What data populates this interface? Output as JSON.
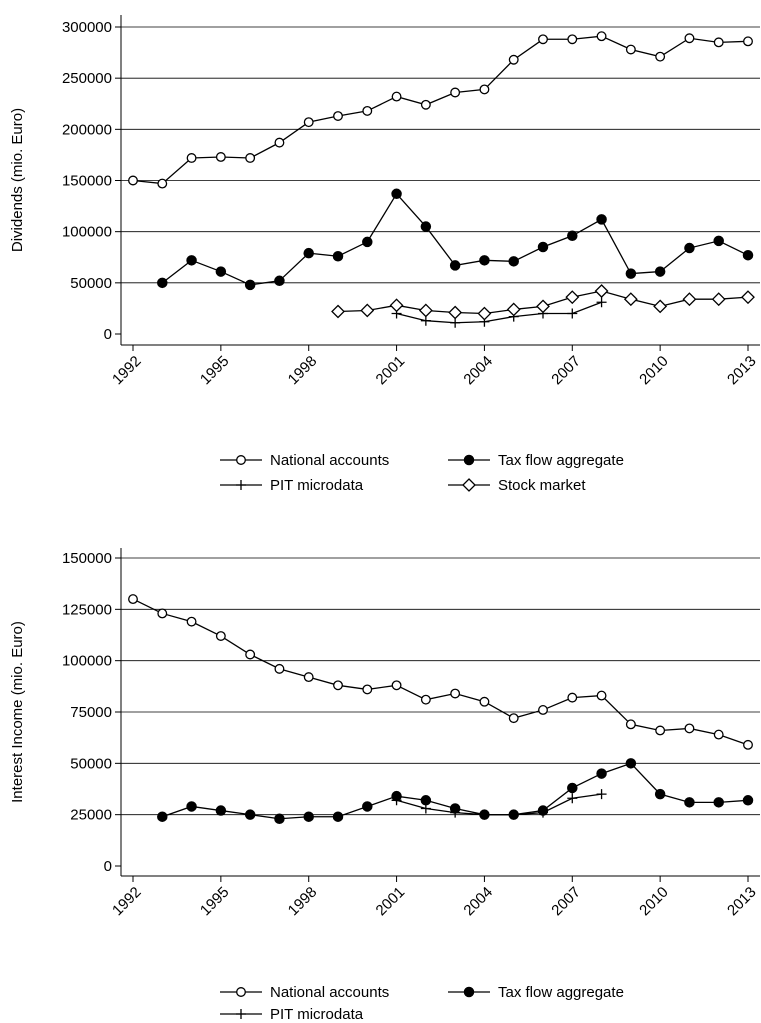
{
  "chart_data": [
    {
      "type": "line",
      "y_label": "Dividends (mio. Euro)",
      "x": [
        1992,
        1993,
        1994,
        1995,
        1996,
        1997,
        1998,
        1999,
        2000,
        2001,
        2002,
        2003,
        2004,
        2005,
        2006,
        2007,
        2008,
        2009,
        2010,
        2011,
        2012,
        2013
      ],
      "xlim": [
        1992,
        2013
      ],
      "xticks": [
        1992,
        1995,
        1998,
        2001,
        2004,
        2007,
        2010,
        2013
      ],
      "ylim": [
        0,
        300000
      ],
      "yticks": [
        0,
        50000,
        100000,
        150000,
        200000,
        250000,
        300000
      ],
      "grid": true,
      "series": [
        {
          "name": "National accounts",
          "color": "#000000",
          "marker": "open-circle",
          "values": [
            150000,
            147000,
            172000,
            173000,
            172000,
            187000,
            207000,
            213000,
            218000,
            232000,
            224000,
            236000,
            239000,
            268000,
            288000,
            288000,
            291000,
            278000,
            271000,
            289000,
            285000,
            286000
          ]
        },
        {
          "name": "Tax flow aggregate",
          "color": "#000000",
          "marker": "filled-circle",
          "values": [
            null,
            50000,
            72000,
            61000,
            48000,
            52000,
            79000,
            76000,
            90000,
            137000,
            105000,
            67000,
            72000,
            71000,
            85000,
            96000,
            112000,
            59000,
            61000,
            84000,
            91000,
            77000
          ]
        },
        {
          "name": "PIT microdata",
          "color": "#000000",
          "marker": "plus",
          "values": [
            null,
            null,
            null,
            null,
            null,
            null,
            null,
            null,
            null,
            20000,
            13000,
            11000,
            12000,
            17000,
            20000,
            20000,
            31000,
            null,
            null,
            null,
            null,
            null
          ]
        },
        {
          "name": "Stock market",
          "color": "#000000",
          "marker": "diamond",
          "values": [
            null,
            null,
            null,
            null,
            null,
            null,
            null,
            22000,
            23000,
            28000,
            23000,
            21000,
            20000,
            24000,
            27000,
            36000,
            42000,
            34000,
            27000,
            34000,
            34000,
            36000
          ]
        }
      ]
    },
    {
      "type": "line",
      "y_label": "Interest Income (mio. Euro)",
      "x": [
        1992,
        1993,
        1994,
        1995,
        1996,
        1997,
        1998,
        1999,
        2000,
        2001,
        2002,
        2003,
        2004,
        2005,
        2006,
        2007,
        2008,
        2009,
        2010,
        2011,
        2012,
        2013
      ],
      "xlim": [
        1992,
        2013
      ],
      "xticks": [
        1992,
        1995,
        1998,
        2001,
        2004,
        2007,
        2010,
        2013
      ],
      "ylim": [
        0,
        150000
      ],
      "yticks": [
        0,
        25000,
        50000,
        75000,
        100000,
        125000,
        150000
      ],
      "grid": true,
      "series": [
        {
          "name": "National accounts",
          "color": "#000000",
          "marker": "open-circle",
          "values": [
            130000,
            123000,
            119000,
            112000,
            103000,
            96000,
            92000,
            88000,
            86000,
            88000,
            81000,
            84000,
            80000,
            72000,
            76000,
            82000,
            83000,
            69000,
            66000,
            67000,
            64000,
            59000
          ]
        },
        {
          "name": "Tax flow aggregate",
          "color": "#000000",
          "marker": "filled-circle",
          "values": [
            null,
            24000,
            29000,
            27000,
            25000,
            23000,
            24000,
            24000,
            29000,
            34000,
            32000,
            28000,
            25000,
            25000,
            27000,
            38000,
            45000,
            50000,
            35000,
            31000,
            31000,
            32000
          ]
        },
        {
          "name": "PIT microdata",
          "color": "#000000",
          "marker": "plus",
          "values": [
            null,
            null,
            null,
            null,
            null,
            null,
            null,
            null,
            null,
            32000,
            28000,
            26000,
            25000,
            25000,
            26000,
            33000,
            35000,
            null,
            null,
            null,
            null,
            null
          ]
        }
      ]
    }
  ]
}
